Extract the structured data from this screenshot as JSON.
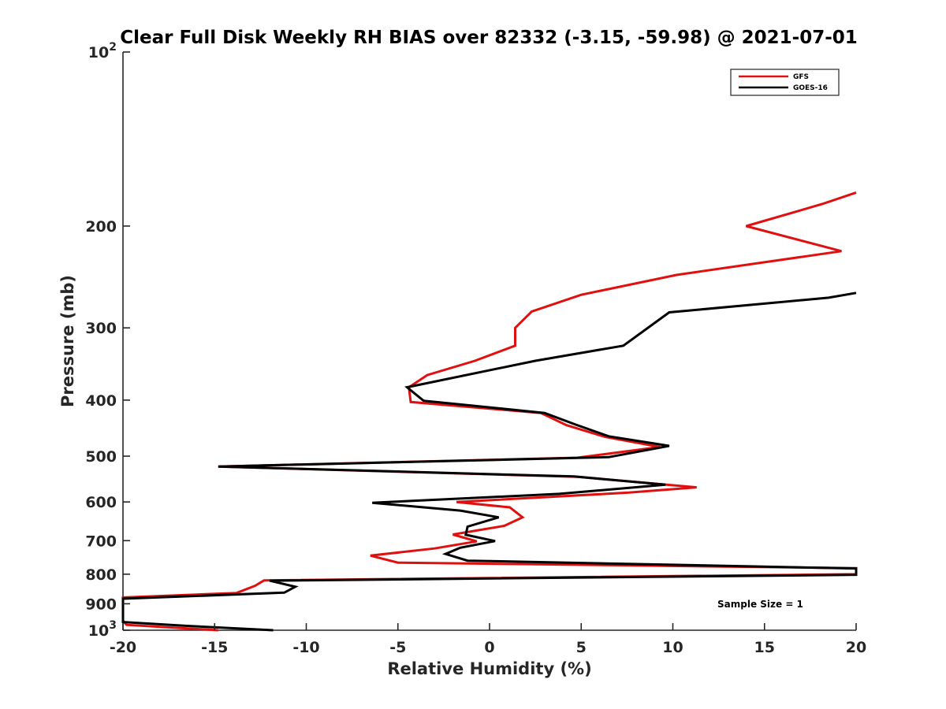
{
  "chart_data": {
    "type": "line",
    "title": "Clear Full Disk Weekly RH BIAS over 82332 (-3.15, -59.98) @ 2021-07-01",
    "xlabel": "Relative Humidity (%)",
    "ylabel": "Pressure (mb)",
    "xlim": [
      -20,
      20
    ],
    "ylim": [
      100,
      1000
    ],
    "y_scale": "log",
    "y_reversed": true,
    "x_ticks": [
      "-20",
      "-15",
      "-10",
      "-5",
      "0",
      "5",
      "10",
      "15",
      "20"
    ],
    "y_ticks": [
      {
        "value": 100,
        "base": "10",
        "exp": "2"
      },
      {
        "value": 200,
        "label": "200"
      },
      {
        "value": 300,
        "label": "300"
      },
      {
        "value": 400,
        "label": "400"
      },
      {
        "value": 500,
        "label": "500"
      },
      {
        "value": 600,
        "label": "600"
      },
      {
        "value": 700,
        "label": "700"
      },
      {
        "value": 800,
        "label": "800"
      },
      {
        "value": 900,
        "label": "900"
      },
      {
        "value": 1000,
        "base": "10",
        "exp": "3"
      }
    ],
    "legend_position": "top-right",
    "annotation": "Sample Size = 1",
    "series": [
      {
        "name": "GFS",
        "color": "#e01010",
        "points": [
          [
            20,
            175
          ],
          [
            18.2,
            183
          ],
          [
            14,
            200
          ],
          [
            19.2,
            221
          ],
          [
            10.2,
            243
          ],
          [
            5,
            263
          ],
          [
            2.3,
            281
          ],
          [
            1.4,
            300
          ],
          [
            1.4,
            322
          ],
          [
            -0.8,
            342
          ],
          [
            -3.4,
            362
          ],
          [
            -4.4,
            380
          ],
          [
            -4.3,
            403
          ],
          [
            2.8,
            421
          ],
          [
            4.2,
            442
          ],
          [
            6.3,
            463
          ],
          [
            9.3,
            482
          ],
          [
            4.8,
            503
          ],
          [
            -14.8,
            521
          ],
          [
            4.8,
            543
          ],
          [
            11.3,
            566
          ],
          [
            7.6,
            578
          ],
          [
            -1.8,
            600
          ],
          [
            1.1,
            613
          ],
          [
            1.8,
            638
          ],
          [
            0.8,
            660
          ],
          [
            -2,
            683
          ],
          [
            -0.7,
            702
          ],
          [
            -3,
            722
          ],
          [
            -6.5,
            743
          ],
          [
            -5,
            764
          ],
          [
            20,
            781
          ],
          [
            20,
            800
          ],
          [
            -12.3,
            820
          ],
          [
            -12.8,
            838
          ],
          [
            -13.8,
            862
          ],
          [
            -20,
            878
          ],
          [
            -20,
            963
          ],
          [
            -19.8,
            979
          ],
          [
            -14.8,
            1000
          ]
        ]
      },
      {
        "name": "GOES-16",
        "color": "#000000",
        "points": [
          [
            20,
            261
          ],
          [
            18.5,
            266
          ],
          [
            9.8,
            282
          ],
          [
            7.3,
            322
          ],
          [
            2.5,
            342
          ],
          [
            -4.5,
            380
          ],
          [
            -3.6,
            401
          ],
          [
            3,
            421
          ],
          [
            4.7,
            441
          ],
          [
            6.5,
            462
          ],
          [
            9.8,
            480
          ],
          [
            6.5,
            502
          ],
          [
            -14.8,
            521
          ],
          [
            4.6,
            542
          ],
          [
            9.6,
            560
          ],
          [
            3.8,
            581
          ],
          [
            -6.4,
            602
          ],
          [
            -1.6,
            621
          ],
          [
            0.5,
            638
          ],
          [
            -1.2,
            662
          ],
          [
            -1.3,
            684
          ],
          [
            0.3,
            701
          ],
          [
            -1.6,
            720
          ],
          [
            -2.4,
            738
          ],
          [
            -1.2,
            758
          ],
          [
            20,
            782
          ],
          [
            20,
            802
          ],
          [
            -12,
            821
          ],
          [
            -10.6,
            841
          ],
          [
            -11.2,
            861
          ],
          [
            -20,
            882
          ],
          [
            -20,
            968
          ],
          [
            -16.5,
            983
          ],
          [
            -11.8,
            1000
          ]
        ]
      }
    ]
  }
}
